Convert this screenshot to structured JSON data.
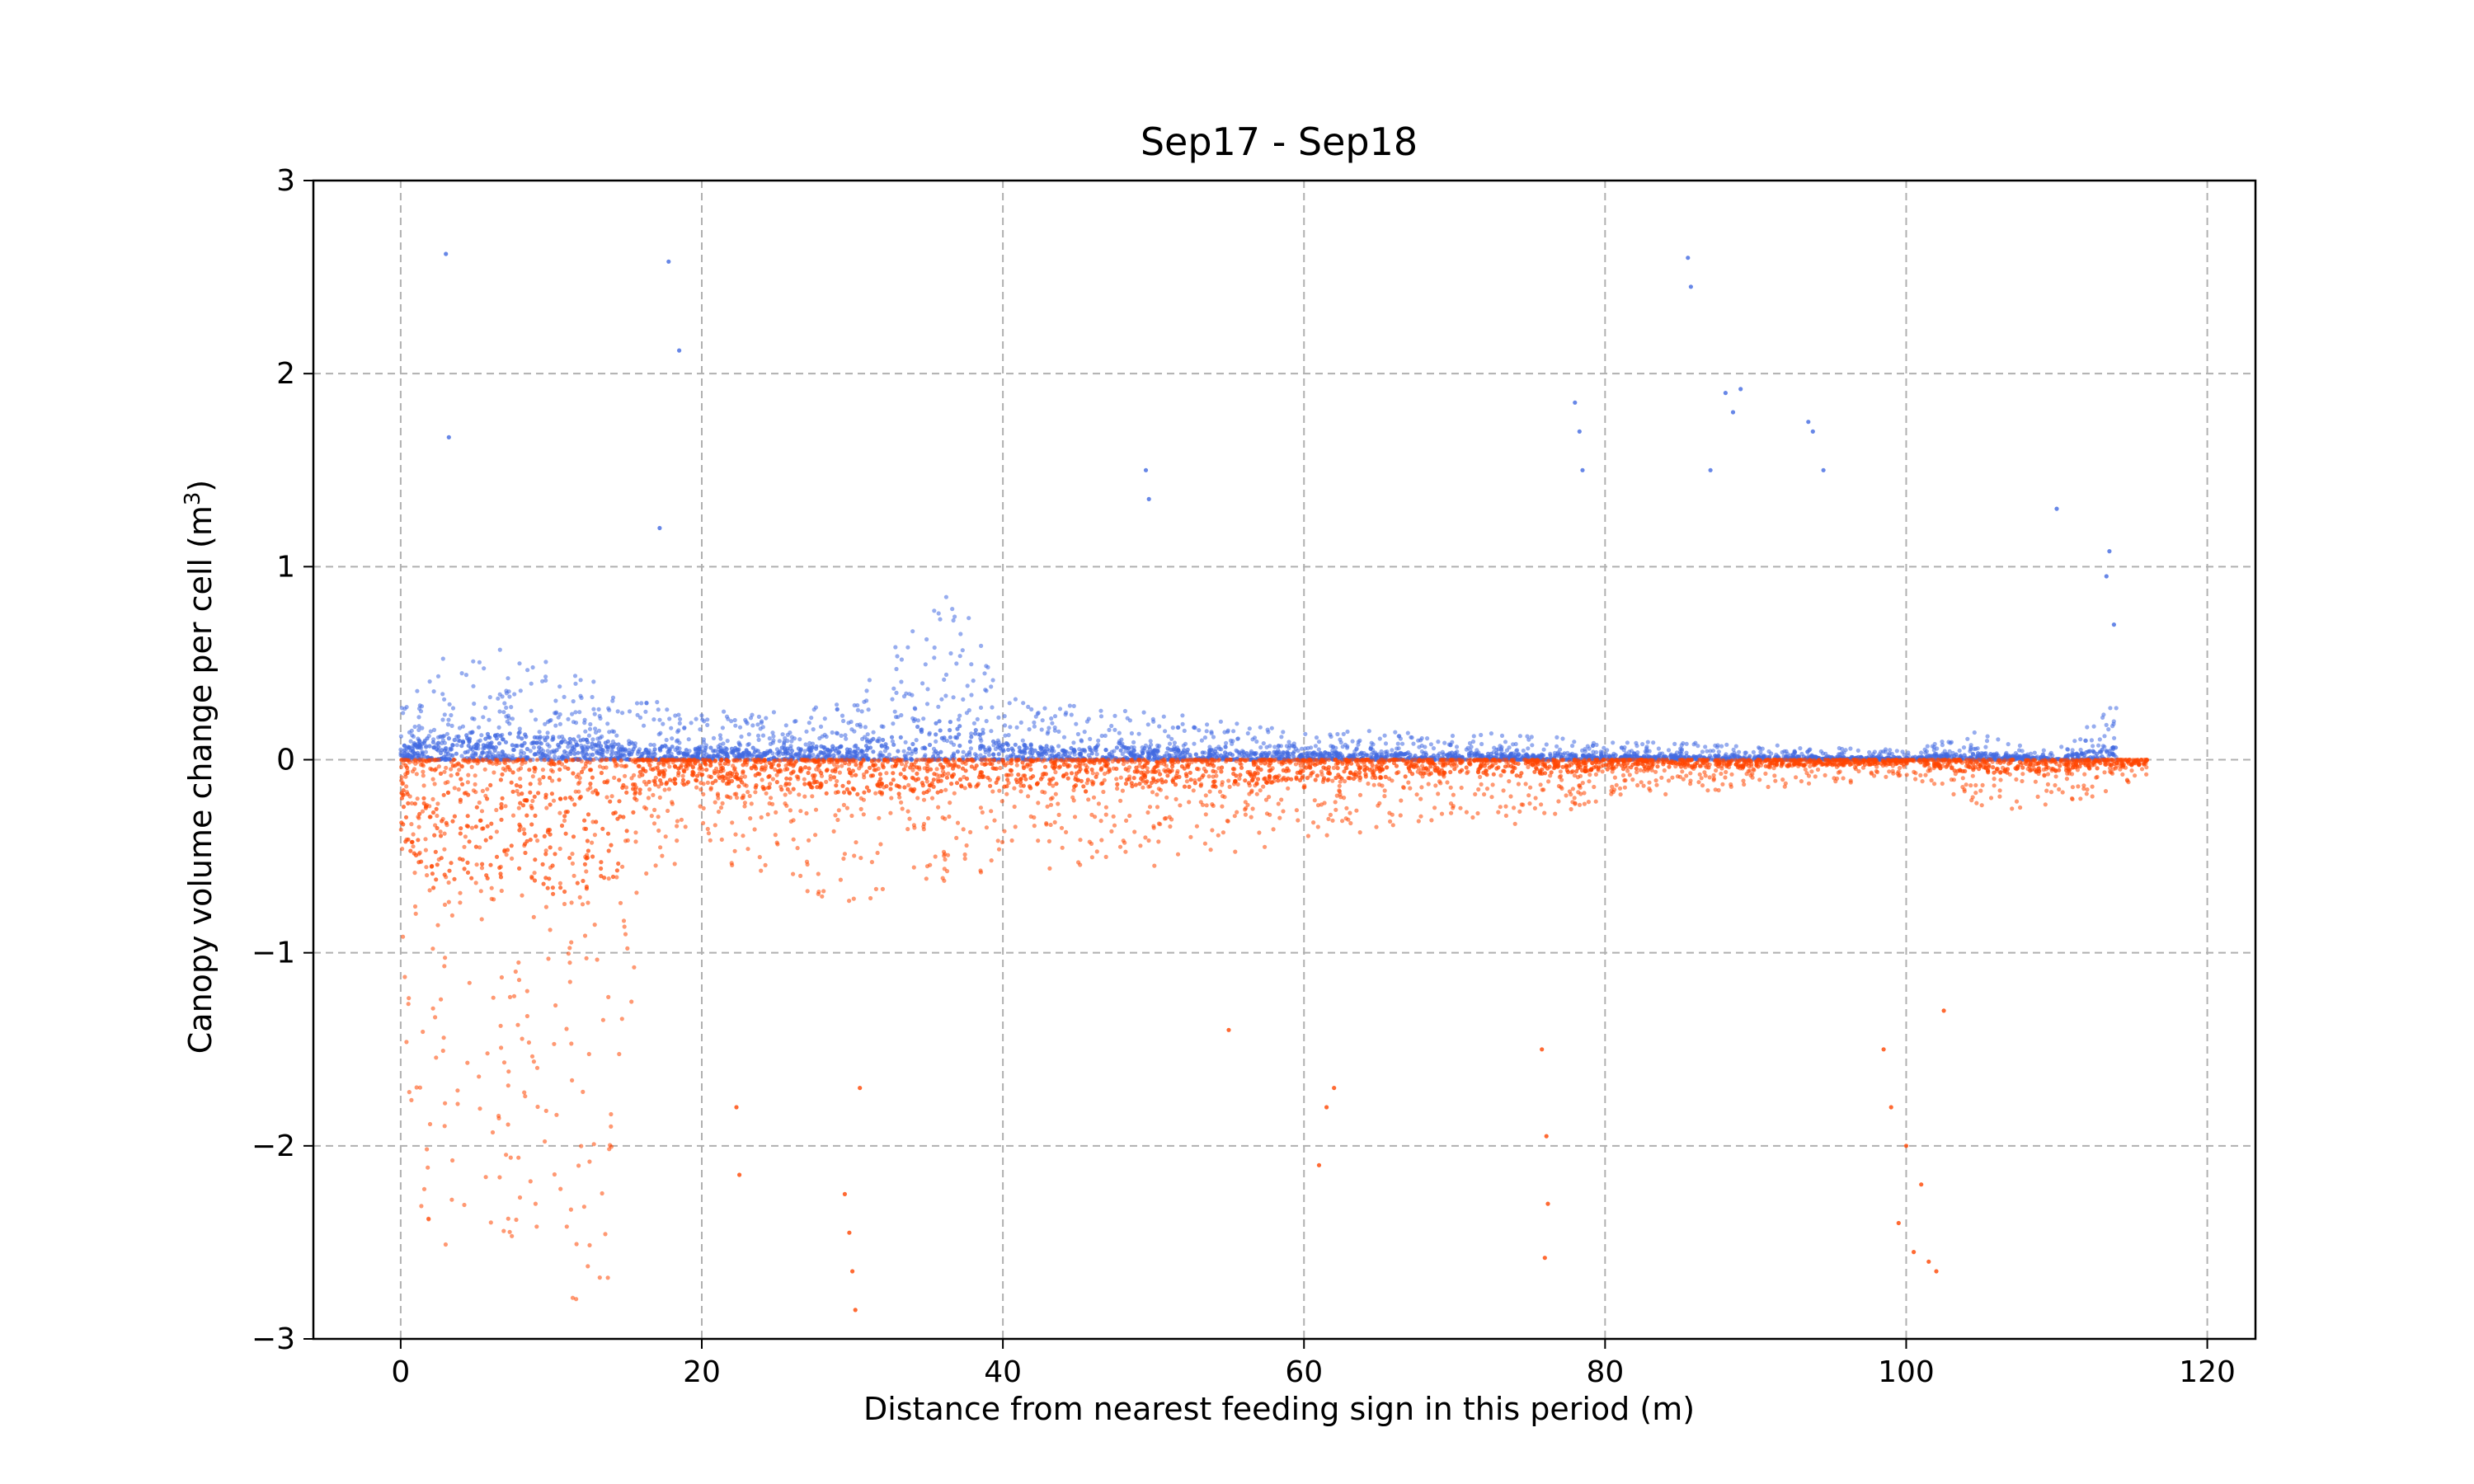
{
  "chart_data": {
    "type": "scatter",
    "title": "Sep17 - Sep18",
    "xlabel": "Distance from nearest feeding sign in this period (m)",
    "ylabel_prefix": "Canopy volume change per cell (m",
    "ylabel_sup": "3",
    "ylabel_suffix": ")",
    "xlim": [
      -5.8,
      123.2
    ],
    "ylim": [
      -3,
      3
    ],
    "x_ticks": [
      0,
      20,
      40,
      60,
      80,
      100,
      120
    ],
    "y_ticks": [
      -3,
      -2,
      -1,
      0,
      1,
      2,
      3
    ],
    "y_tick_labels": [
      "−3",
      "−2",
      "−1",
      "0",
      "1",
      "2",
      "3"
    ],
    "grid": true,
    "grid_style": "dashed",
    "legend": "none",
    "colors": {
      "positive": "#4169e1",
      "negative": "#ff4500",
      "grid": "#b0b0b0",
      "axes": "#000000"
    },
    "series": [
      {
        "color": "#4169e1",
        "sign": "positive",
        "envelope": [
          [
            0,
            0.3
          ],
          [
            3,
            0.55
          ],
          [
            6,
            0.6
          ],
          [
            10,
            0.5
          ],
          [
            15,
            0.35
          ],
          [
            20,
            0.25
          ],
          [
            25,
            0.25
          ],
          [
            30,
            0.3
          ],
          [
            34,
            0.7
          ],
          [
            37,
            0.9
          ],
          [
            40,
            0.35
          ],
          [
            43,
            0.3
          ],
          [
            50,
            0.25
          ],
          [
            55,
            0.2
          ],
          [
            60,
            0.15
          ],
          [
            70,
            0.15
          ],
          [
            80,
            0.1
          ],
          [
            90,
            0.08
          ],
          [
            100,
            0.05
          ],
          [
            104,
            0.15
          ],
          [
            110,
            0.05
          ],
          [
            114,
            0.3
          ]
        ],
        "outliers": [
          [
            3,
            2.62
          ],
          [
            3.2,
            1.67
          ],
          [
            17.8,
            2.58
          ],
          [
            18.5,
            2.12
          ],
          [
            17.2,
            1.2
          ],
          [
            49.5,
            1.5
          ],
          [
            49.7,
            1.35
          ],
          [
            85.5,
            2.6
          ],
          [
            85.7,
            2.45
          ],
          [
            88,
            1.9
          ],
          [
            88.5,
            1.8
          ],
          [
            89,
            1.92
          ],
          [
            87,
            1.5
          ],
          [
            93.5,
            1.75
          ],
          [
            93.8,
            1.7
          ],
          [
            94.5,
            1.5
          ],
          [
            78,
            1.85
          ],
          [
            78.3,
            1.7
          ],
          [
            78.5,
            1.5
          ],
          [
            110,
            1.3
          ],
          [
            113.5,
            1.08
          ],
          [
            113.3,
            0.95
          ],
          [
            113.8,
            0.7
          ]
        ]
      },
      {
        "color": "#ff4500",
        "sign": "negative",
        "envelope": [
          [
            0,
            -1.5
          ],
          [
            2,
            -2.8
          ],
          [
            5,
            -2.7
          ],
          [
            8,
            -2.5
          ],
          [
            11,
            -2.9
          ],
          [
            14,
            -2.7
          ],
          [
            16,
            -0.6
          ],
          [
            20,
            -0.5
          ],
          [
            25,
            -0.65
          ],
          [
            30,
            -0.75
          ],
          [
            35,
            -0.7
          ],
          [
            40,
            -0.6
          ],
          [
            50,
            -0.55
          ],
          [
            55,
            -0.6
          ],
          [
            60,
            -0.45
          ],
          [
            70,
            -0.3
          ],
          [
            75,
            -0.35
          ],
          [
            80,
            -0.2
          ],
          [
            90,
            -0.15
          ],
          [
            100,
            -0.1
          ],
          [
            105,
            -0.3
          ],
          [
            110,
            -0.25
          ],
          [
            116,
            -0.1
          ]
        ],
        "outliers": [
          [
            29.5,
            -2.25
          ],
          [
            29.8,
            -2.45
          ],
          [
            30,
            -2.65
          ],
          [
            30.2,
            -2.85
          ],
          [
            30.5,
            -1.7
          ],
          [
            22.5,
            -2.15
          ],
          [
            22.3,
            -1.8
          ],
          [
            76,
            -2.58
          ],
          [
            76.2,
            -2.3
          ],
          [
            76.1,
            -1.95
          ],
          [
            75.8,
            -1.5
          ],
          [
            61,
            -2.1
          ],
          [
            61.5,
            -1.8
          ],
          [
            62,
            -1.7
          ],
          [
            55,
            -1.4
          ],
          [
            99.5,
            -2.4
          ],
          [
            100.5,
            -2.55
          ],
          [
            101,
            -2.2
          ],
          [
            101.5,
            -2.6
          ],
          [
            102,
            -2.65
          ],
          [
            99,
            -1.8
          ],
          [
            100,
            -2.0
          ],
          [
            98.5,
            -1.5
          ],
          [
            102.5,
            -1.3
          ]
        ]
      }
    ]
  }
}
